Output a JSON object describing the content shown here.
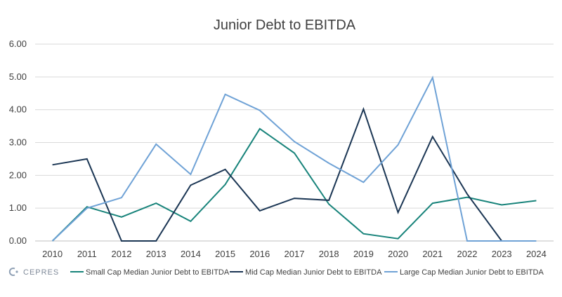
{
  "chart_data": {
    "type": "line",
    "title": "Junior Debt to EBITDA",
    "xlabel": "",
    "ylabel": "",
    "categories": [
      "2010",
      "2011",
      "2012",
      "2013",
      "2014",
      "2015",
      "2016",
      "2017",
      "2018",
      "2019",
      "2020",
      "2021",
      "2022",
      "2023",
      "2024"
    ],
    "ylim": [
      0,
      6
    ],
    "yticks": [
      "0.00",
      "1.00",
      "2.00",
      "3.00",
      "4.00",
      "5.00",
      "6.00"
    ],
    "ytick_values": [
      0,
      1,
      2,
      3,
      4,
      5,
      6
    ],
    "grid": true,
    "legend_position": "bottom",
    "series": [
      {
        "name": "Small Cap Median Junior Debt to EBITDA",
        "color": "#17837a",
        "values": [
          0.0,
          1.04,
          0.73,
          1.15,
          0.6,
          1.72,
          3.42,
          2.68,
          1.12,
          0.22,
          0.07,
          1.15,
          1.33,
          1.1,
          1.23
        ]
      },
      {
        "name": "Mid Cap Median Junior Debt to EBITDA",
        "color": "#1b3654",
        "values": [
          2.32,
          2.5,
          0.0,
          0.0,
          1.7,
          2.18,
          0.92,
          1.3,
          1.24,
          4.02,
          0.87,
          3.18,
          1.43,
          0.0,
          null
        ]
      },
      {
        "name": "Large Cap Median Junior Debt to EBITDA",
        "color": "#6fa2d6",
        "values": [
          0.0,
          1.0,
          1.32,
          2.95,
          2.03,
          4.47,
          3.98,
          3.03,
          2.37,
          1.79,
          2.93,
          4.98,
          0.0,
          0.0,
          0.0
        ]
      }
    ]
  },
  "branding": {
    "logo_text": "CEPRES",
    "logo_icon": "cepres-logo-icon"
  }
}
